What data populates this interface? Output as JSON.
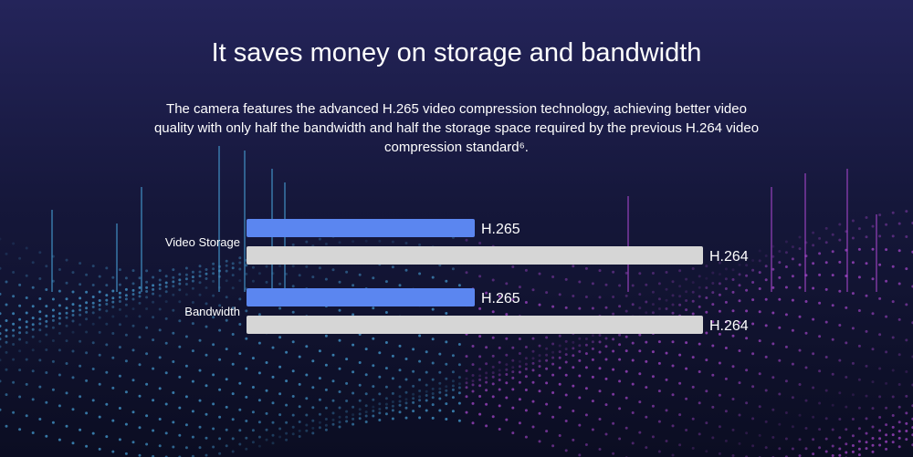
{
  "header": {
    "title": "It saves money on storage and bandwidth",
    "description": "The camera features the advanced H.265 video compression technology, achieving better video quality with only half the bandwidth and half the storage space required by the previous H.264 video compression standard⁶."
  },
  "colors": {
    "background": "#12142e",
    "h265_bar": "#5b86f0",
    "h264_bar": "#d6d6d6",
    "dots_left": "#4aa8e0",
    "dots_right": "#b04ad6"
  },
  "chart_data": {
    "type": "bar",
    "orientation": "horizontal",
    "categories": [
      "Video Storage",
      "Bandwidth"
    ],
    "series": [
      {
        "name": "H.265",
        "values": [
          50,
          50
        ]
      },
      {
        "name": "H.264",
        "values": [
          100,
          100
        ]
      }
    ],
    "xlim": [
      0,
      100
    ],
    "grid": false,
    "legend": "none"
  }
}
